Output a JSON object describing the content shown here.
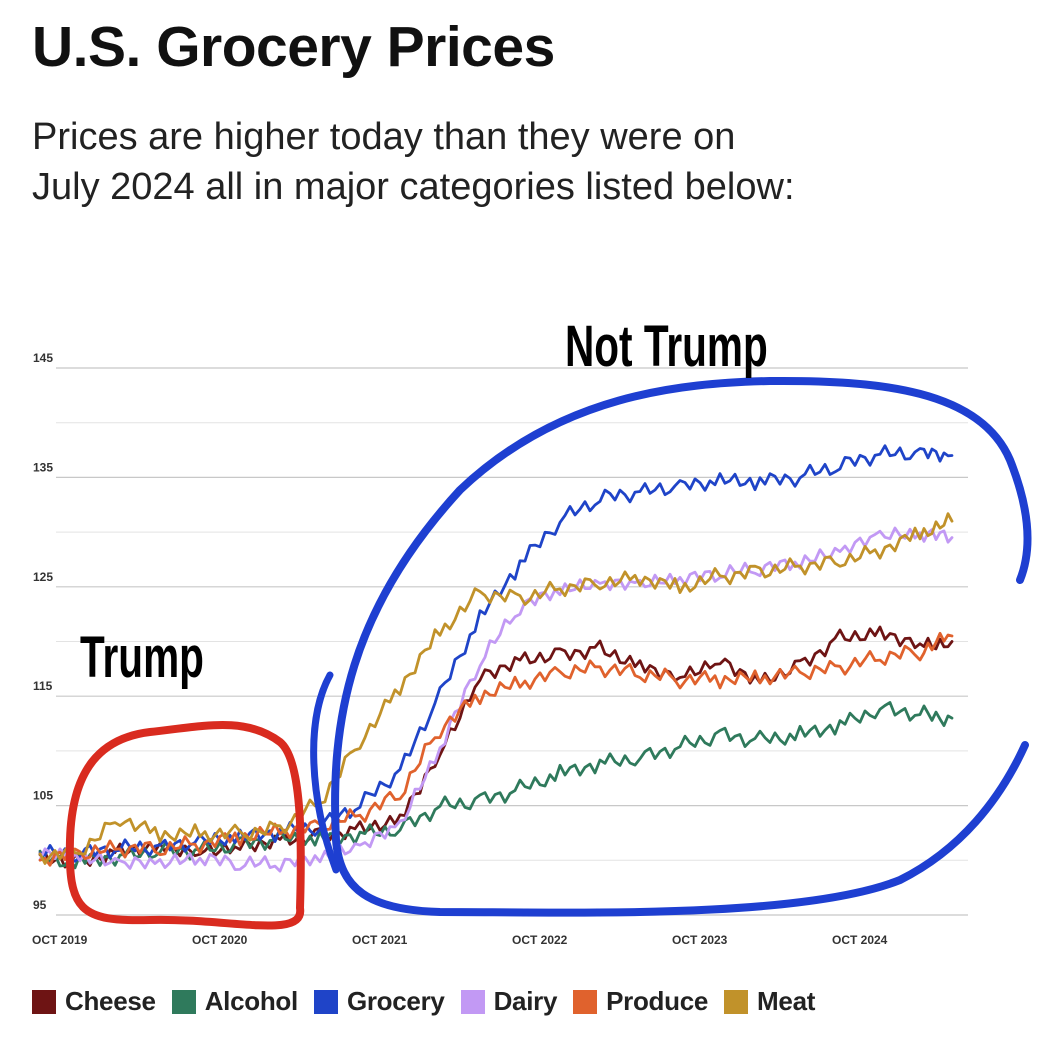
{
  "header": {
    "title": "U.S. Grocery Prices",
    "subtitle_line1": "Prices are higher today than they were on",
    "subtitle_line2": "July 2024 all in major categories listed below:"
  },
  "annotations": {
    "left_label": "Trump",
    "right_label": "Not Trump",
    "left_circle_color": "#d92b1f",
    "right_circle_color": "#1e3fd1"
  },
  "chart_data": {
    "type": "line",
    "title": "U.S. Grocery Prices",
    "xlabel": "",
    "ylabel": "",
    "x_range": [
      2019.75,
      2025.5
    ],
    "ylim": [
      95,
      145
    ],
    "y_ticks": [
      95,
      105,
      115,
      125,
      135,
      145
    ],
    "x_ticks": [
      {
        "value": 2019.75,
        "label": "OCT 2019"
      },
      {
        "value": 2020.75,
        "label": "OCT 2020"
      },
      {
        "value": 2021.75,
        "label": "OCT 2021"
      },
      {
        "value": 2022.75,
        "label": "OCT 2022"
      },
      {
        "value": 2023.75,
        "label": "OCT 2023"
      },
      {
        "value": 2024.75,
        "label": "OCT 2024"
      }
    ],
    "grid": true,
    "legend_position": "bottom",
    "x": [
      2019.75,
      2020.0,
      2020.25,
      2020.5,
      2020.75,
      2021.0,
      2021.25,
      2021.5,
      2021.75,
      2022.0,
      2022.25,
      2022.5,
      2022.75,
      2023.0,
      2023.25,
      2023.5,
      2023.75,
      2024.0,
      2024.25,
      2024.5,
      2024.75,
      2025.0,
      2025.25,
      2025.45
    ],
    "series": [
      {
        "name": "Cheese",
        "color": "#6e1414",
        "values": [
          100.5,
          100.0,
          101.0,
          101.5,
          101.0,
          101.5,
          102.0,
          102.5,
          103.0,
          104.0,
          110.0,
          117.0,
          118.5,
          119.0,
          119.5,
          118.0,
          117.0,
          118.5,
          116.5,
          118.0,
          120.5,
          121.0,
          120.0,
          120.0
        ]
      },
      {
        "name": "Alcohol",
        "color": "#2f7a5c",
        "values": [
          100.0,
          100.0,
          100.5,
          101.0,
          101.0,
          101.5,
          102.0,
          102.0,
          102.5,
          103.0,
          105.0,
          105.5,
          106.5,
          108.0,
          109.0,
          109.5,
          110.5,
          111.5,
          111.0,
          111.5,
          112.5,
          114.0,
          113.5,
          113.0
        ]
      },
      {
        "name": "Grocery",
        "color": "#1f44c8",
        "values": [
          100.5,
          100.5,
          101.0,
          101.0,
          101.5,
          102.0,
          102.5,
          103.0,
          105.0,
          108.0,
          115.0,
          122.0,
          127.0,
          131.0,
          133.0,
          133.5,
          134.0,
          134.5,
          134.5,
          135.0,
          136.0,
          137.0,
          137.0,
          137.0
        ]
      },
      {
        "name": "Dairy",
        "color": "#c299f4",
        "values": [
          100.5,
          100.0,
          99.5,
          99.5,
          100.0,
          99.5,
          99.5,
          100.0,
          101.0,
          103.0,
          110.0,
          118.0,
          123.0,
          124.5,
          125.0,
          125.0,
          125.5,
          126.0,
          126.5,
          127.0,
          128.0,
          129.5,
          129.5,
          129.5
        ]
      },
      {
        "name": "Produce",
        "color": "#e0622d",
        "values": [
          100.0,
          100.5,
          101.0,
          101.0,
          101.5,
          102.0,
          102.5,
          103.0,
          104.0,
          106.0,
          112.0,
          115.0,
          116.0,
          117.0,
          117.5,
          117.0,
          116.5,
          116.5,
          116.5,
          117.0,
          117.5,
          118.5,
          119.0,
          120.5
        ]
      },
      {
        "name": "Meat",
        "color": "#c1922a",
        "values": [
          100.5,
          101.0,
          104.0,
          102.5,
          102.5,
          102.5,
          103.0,
          105.5,
          111.0,
          116.0,
          121.0,
          124.5,
          124.0,
          125.0,
          125.5,
          126.0,
          125.0,
          126.0,
          126.5,
          127.0,
          127.5,
          128.5,
          130.0,
          131.0
        ]
      }
    ]
  }
}
